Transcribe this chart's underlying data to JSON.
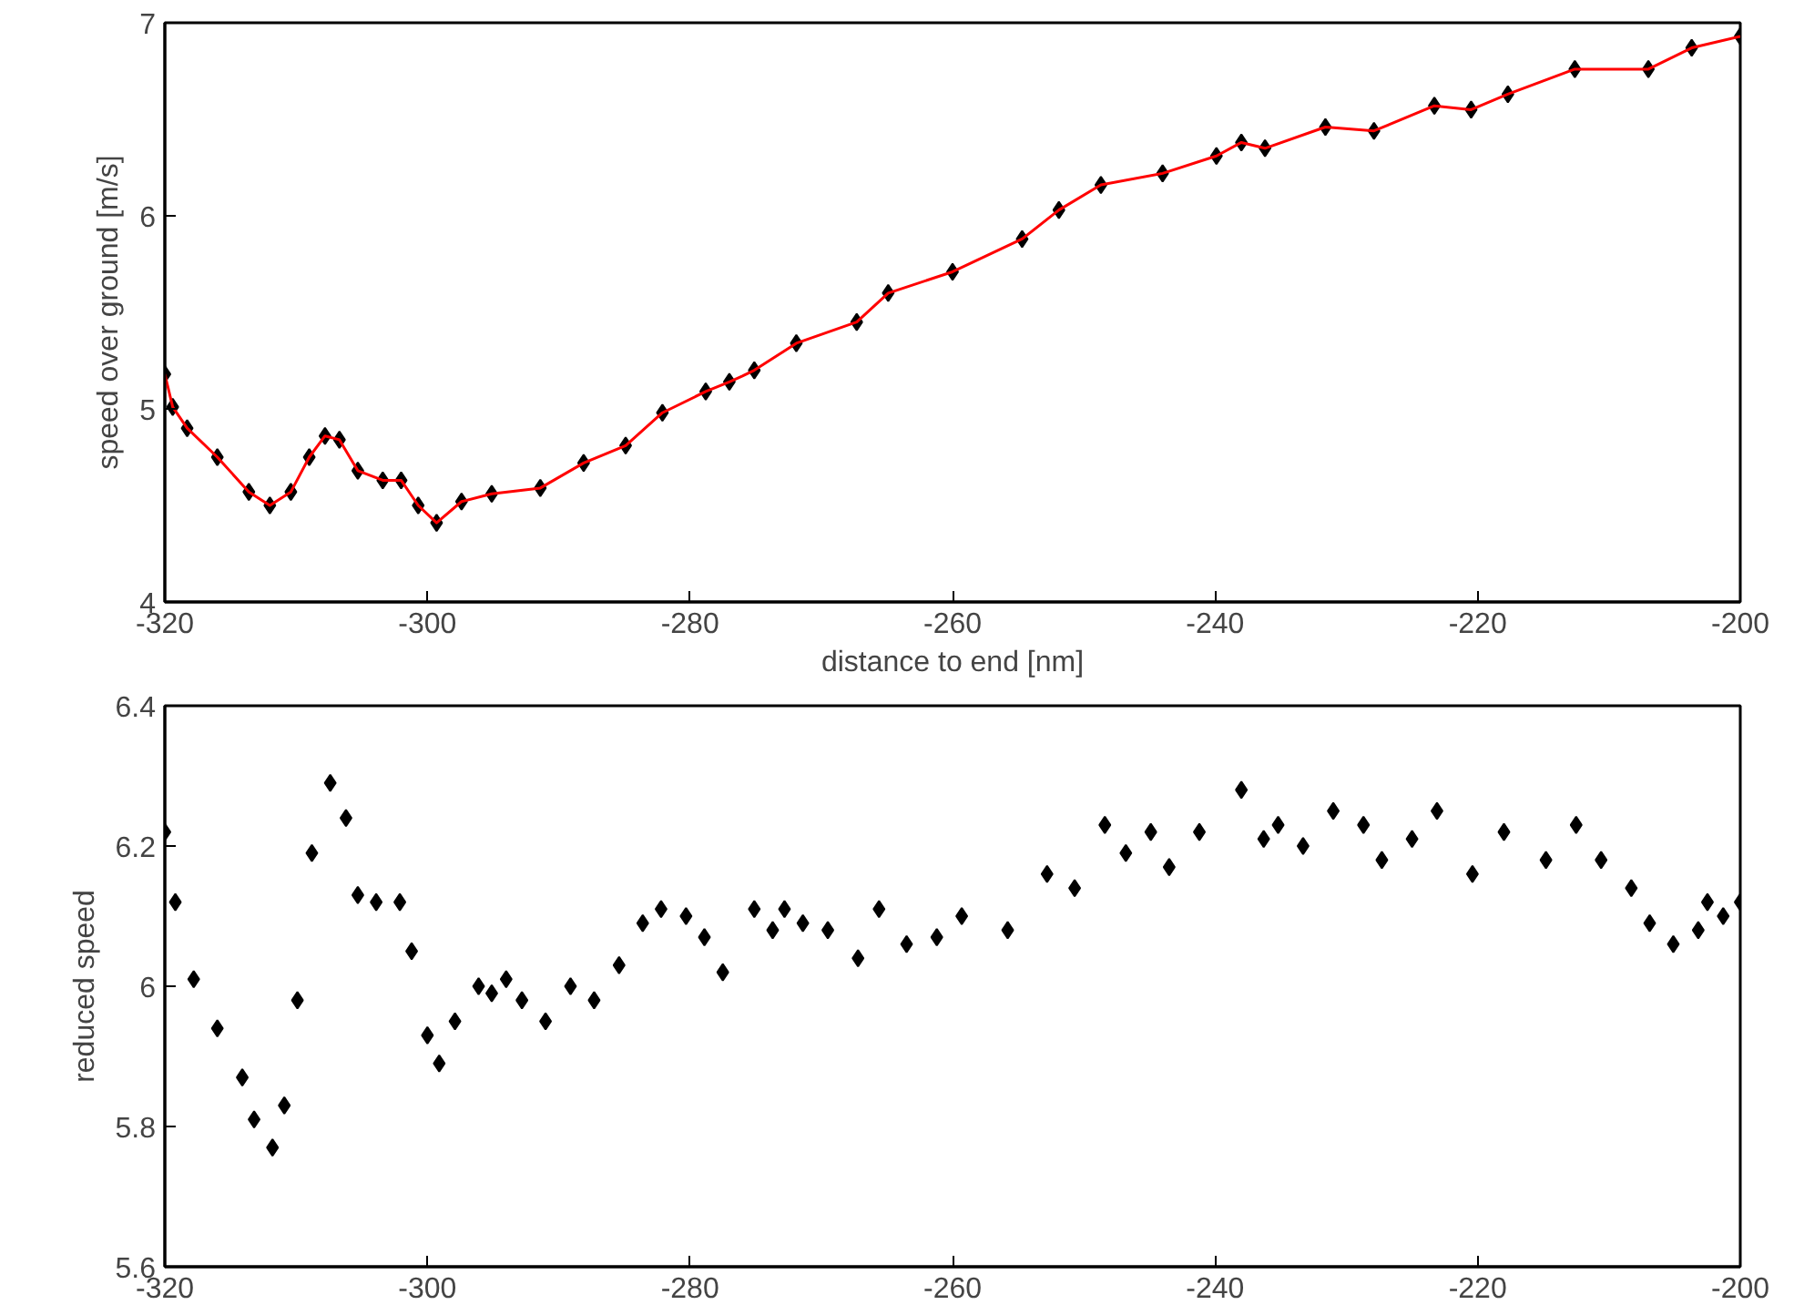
{
  "chart_data": [
    {
      "type": "scatter",
      "xlabel": "distance to end [nm]",
      "ylabel": "speed over ground [m/s]",
      "xlim": [
        -320,
        -200
      ],
      "xticks": [
        -320,
        -300,
        -280,
        -260,
        -240,
        -220,
        -200
      ],
      "ylim": [
        4,
        7
      ],
      "yticks": [
        4,
        5,
        6,
        7
      ],
      "grid": false,
      "x": [
        -320,
        -319.4,
        -318.3,
        -316,
        -313.6,
        -312,
        -310.4,
        -309,
        -307.8,
        -306.7,
        -305.3,
        -303.4,
        -302,
        -300.7,
        -299.3,
        -297.4,
        -295.1,
        -291.4,
        -288.1,
        -284.9,
        -282.1,
        -278.8,
        -277,
        -276,
        -275.1,
        -271.9,
        -267.3,
        -264.9,
        -260,
        -254.7,
        -251.9,
        -248.7,
        -244,
        -239.9,
        -238,
        -236.2,
        -231.6,
        -227.9,
        -223.3,
        -220.5,
        -217.7,
        -212.6,
        -207,
        -203.7,
        -200
      ],
      "series": [
        {
          "marker": "diamond",
          "color": "#000000",
          "values": [
            5.18,
            5.01,
            4.9,
            4.75,
            4.57,
            4.5,
            4.57,
            4.75,
            4.86,
            4.84,
            4.68,
            4.63,
            4.63,
            4.5,
            4.41,
            4.52,
            4.56,
            4.59,
            4.72,
            4.81,
            4.98,
            5.09,
            5.14,
            null,
            5.2,
            5.34,
            5.45,
            5.6,
            5.71,
            5.88,
            6.03,
            6.16,
            6.22,
            6.31,
            6.38,
            6.35,
            6.46,
            6.44,
            6.57,
            6.55,
            6.63,
            6.76,
            6.76,
            6.87,
            6.93
          ]
        },
        {
          "type": "line",
          "color": "#ff0000",
          "line_style": "solid",
          "values": [
            5.18,
            5.01,
            4.9,
            4.75,
            4.57,
            4.5,
            4.57,
            4.75,
            4.86,
            4.84,
            4.68,
            4.63,
            4.63,
            4.5,
            4.41,
            4.52,
            4.56,
            4.59,
            4.72,
            4.81,
            4.98,
            5.09,
            5.14,
            5.17,
            5.2,
            5.34,
            5.45,
            5.6,
            5.71,
            5.88,
            6.03,
            6.16,
            6.22,
            6.31,
            6.38,
            6.35,
            6.46,
            6.44,
            6.57,
            6.55,
            6.63,
            6.76,
            6.76,
            6.87,
            6.93
          ]
        }
      ]
    },
    {
      "type": "scatter",
      "ylabel": "reduced speed",
      "xlim": [
        -320,
        -200
      ],
      "xticks": [
        -320,
        -300,
        -280,
        -260,
        -240,
        -220,
        -200
      ],
      "ylim": [
        5.6,
        6.4
      ],
      "yticks": [
        5.6,
        5.8,
        6,
        6.2,
        6.4
      ],
      "grid": false,
      "x": [
        -320,
        -319.2,
        -317.8,
        -316,
        -314.1,
        -313.2,
        -311.8,
        -310.9,
        -309.9,
        -308.8,
        -307.4,
        -306.2,
        -305.3,
        -303.9,
        -302.1,
        -301.2,
        -300,
        -299.1,
        -297.9,
        -296.1,
        -295.1,
        -294,
        -292.8,
        -291,
        -289.1,
        -287.3,
        -285.4,
        -283.6,
        -282.2,
        -280.3,
        -278.9,
        -277.5,
        -276.3,
        -275.1,
        -273.7,
        -272.8,
        -271.4,
        -269.5,
        -267.2,
        -265.6,
        -263.5,
        -261.2,
        -259.3,
        -255.8,
        -252.8,
        -250.7,
        -248.4,
        -246.8,
        -244.9,
        -243.5,
        -241.2,
        -238,
        -236.3,
        -235.2,
        -233.3,
        -231,
        -228.7,
        -227.3,
        -225,
        -223.1,
        -220.4,
        -218,
        -214.8,
        -212.5,
        -210.6,
        -208.3,
        -206.9,
        -205.1,
        -203.2,
        -202.5,
        -201.3,
        -200
      ],
      "series": [
        {
          "marker": "diamond",
          "color": "#000000",
          "values": [
            6.22,
            6.12,
            6.01,
            5.94,
            5.87,
            5.81,
            5.77,
            5.83,
            5.98,
            6.19,
            6.29,
            6.24,
            6.13,
            6.12,
            6.12,
            6.05,
            5.93,
            5.89,
            5.95,
            6.0,
            5.99,
            6.01,
            5.98,
            5.95,
            6.0,
            5.98,
            6.03,
            6.09,
            6.11,
            6.1,
            6.07,
            6.02,
            null,
            6.11,
            6.08,
            6.11,
            6.09,
            6.08,
            6.04,
            6.11,
            6.06,
            6.07,
            6.1,
            6.08,
            6.16,
            6.14,
            6.23,
            6.19,
            6.22,
            6.17,
            6.22,
            6.28,
            6.21,
            6.23,
            6.2,
            6.25,
            6.23,
            6.18,
            6.21,
            6.25,
            6.16,
            6.22,
            6.18,
            6.23,
            6.18,
            6.14,
            6.09,
            6.06,
            6.08,
            6.12,
            6.1,
            6.12
          ]
        }
      ]
    }
  ]
}
